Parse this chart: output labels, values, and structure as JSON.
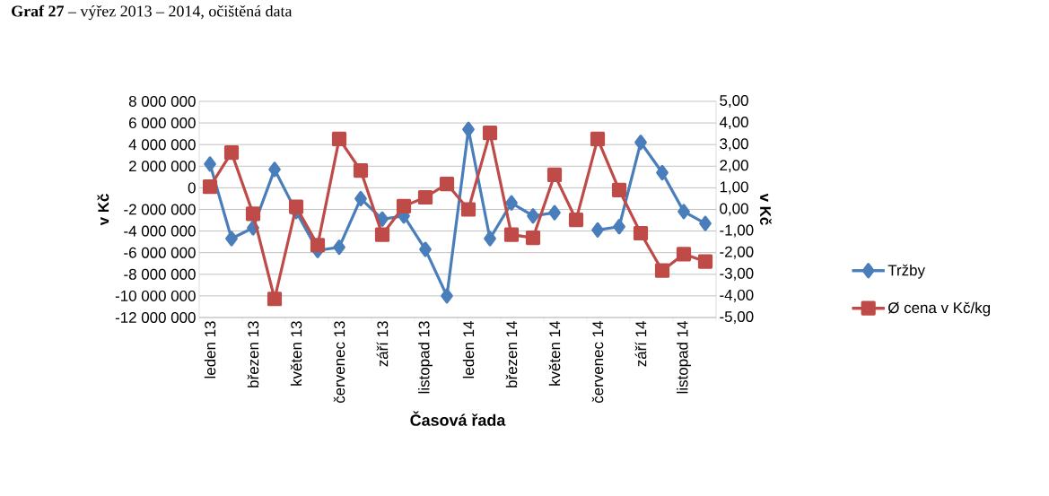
{
  "chart_data": {
    "type": "line",
    "title": "**Graf 27** – výřez 2013 – 2014, očištěná data",
    "xlabel": "Časová řada",
    "ylabel": "v Kč",
    "y2label": "v Kč",
    "categories": [
      "leden 13",
      null,
      "březen 13",
      null,
      "květen 13",
      null,
      "červenec 13",
      null,
      "září 13",
      null,
      "listopad 13",
      null,
      "leden 14",
      null,
      "březen 14",
      null,
      "květen 14",
      null,
      "červenec 14",
      null,
      "září 14",
      null,
      "listopad 14",
      null
    ],
    "series": [
      {
        "name": "Tržby",
        "color": "#4a7ebb",
        "marker": "diamond",
        "values": [
          2200000,
          -4700000,
          -3700000,
          1700000,
          -2200000,
          -5800000,
          -5500000,
          -1000000,
          -2900000,
          -2600000,
          -5700000,
          -10000000,
          5400000,
          -4700000,
          -1400000,
          -2600000,
          -2300000,
          null,
          -3900000,
          -3600000,
          4200000,
          1400000,
          -2200000,
          -3300000
        ]
      },
      {
        "name": "Ø cena v Kč/kg",
        "color": "#be4b48",
        "marker": "square",
        "axis": "y2",
        "values": [
          1.05,
          2.63,
          -0.2,
          -4.14,
          0.12,
          -1.65,
          3.26,
          1.8,
          -1.17,
          0.15,
          0.56,
          1.18,
          0.0,
          3.54,
          -1.17,
          -1.31,
          1.6,
          -0.48,
          3.26,
          0.9,
          -1.1,
          -2.83,
          -2.07,
          -2.41
        ]
      }
    ],
    "ylim": [
      -12000000,
      8000000
    ],
    "yticks": [
      {
        "value": -12000000,
        "label": "-12 000 000"
      },
      {
        "value": -10000000,
        "label": "-10 000 000"
      },
      {
        "value": -8000000,
        "label": "-8 000 000"
      },
      {
        "value": -6000000,
        "label": "-6 000 000"
      },
      {
        "value": -4000000,
        "label": "-4 000 000"
      },
      {
        "value": -2000000,
        "label": "-2 000 000"
      },
      0,
      {
        "value": 2000000,
        "label": "2 000 000"
      },
      {
        "value": 4000000,
        "label": "4 000 000"
      },
      {
        "value": 6000000,
        "label": "6 000 000"
      },
      {
        "value": 8000000,
        "label": "8 000 000"
      }
    ],
    "y2lim": [
      -5,
      5
    ],
    "y2ticks": [
      {
        "value": -5,
        "label": "-5,00"
      },
      {
        "value": -4,
        "label": "-4,00"
      },
      {
        "value": -3,
        "label": "-3,00"
      },
      {
        "value": -2,
        "label": "-2,00"
      },
      {
        "value": -1,
        "label": "-1,00"
      },
      {
        "value": 0,
        "label": "0,00"
      },
      {
        "value": 1,
        "label": "1,00"
      },
      {
        "value": 2,
        "label": "2,00"
      },
      {
        "value": 3,
        "label": "3,00"
      },
      {
        "value": 4,
        "label": "4,00"
      },
      {
        "value": 5,
        "label": "5,00"
      }
    ],
    "grid": "y",
    "legend": "right",
    "line_style": "solid"
  }
}
